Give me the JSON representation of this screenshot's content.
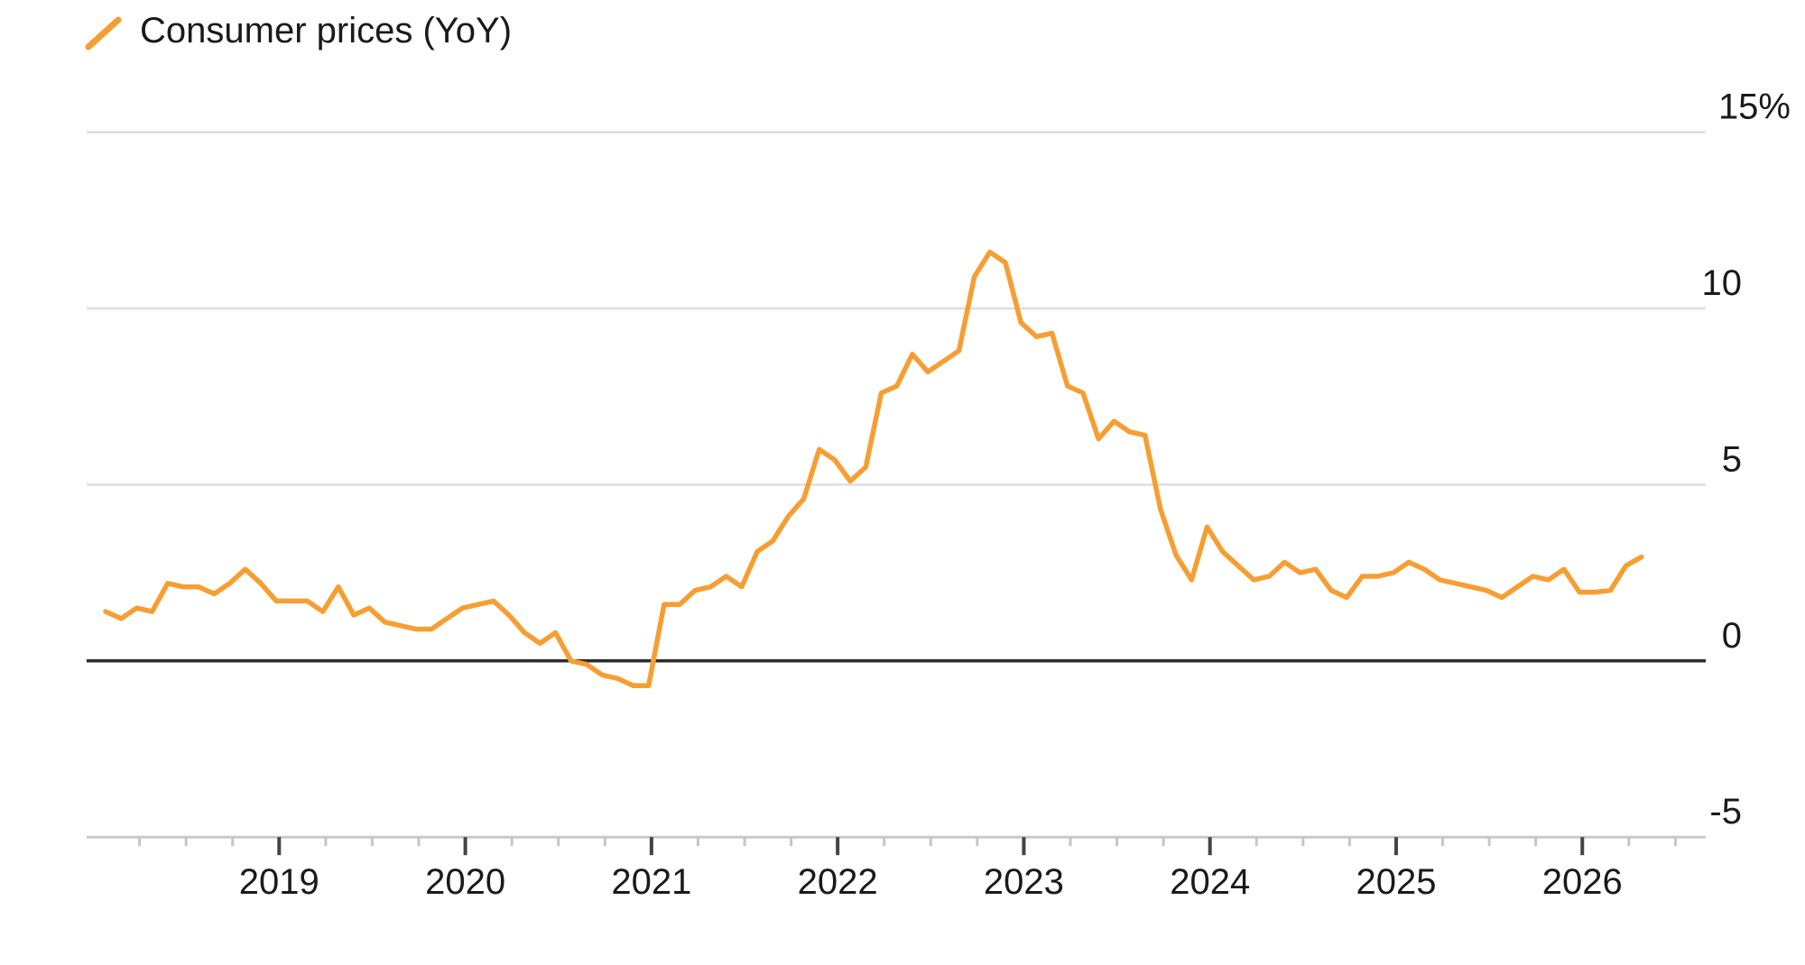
{
  "legend": {
    "swatch_icon": "orange-diagonal-line",
    "label": "Consumer prices (YoY)"
  },
  "colors": {
    "line": "#F79E32",
    "grid": "#DEDEDE",
    "zero_line": "#2B2B2B",
    "axis_line": "#C9C9C9",
    "major_tick": "#444444",
    "minor_tick": "#C6C6C6",
    "text": "#1A1A1A",
    "background": "#FFFFFF"
  },
  "chart_data": {
    "type": "line",
    "title": "",
    "unit": "%",
    "legend_position": "top-left",
    "grid": "horizontal-only",
    "x_axis": {
      "tick_years": [
        "2019",
        "2020",
        "2021",
        "2022",
        "2023",
        "2024",
        "2025",
        "2026"
      ],
      "minor_tick_interval": "quarterly",
      "range": [
        "2018-01",
        "2026-07"
      ]
    },
    "y_axis": {
      "side": "right",
      "range": [
        -5,
        15
      ],
      "ticks": [
        {
          "value": 15,
          "label": "15%"
        },
        {
          "value": 10,
          "label": "10"
        },
        {
          "value": 5,
          "label": "5"
        },
        {
          "value": 0,
          "label": "0"
        },
        {
          "value": -5,
          "label": "-5"
        }
      ]
    },
    "series": [
      {
        "name": "Consumer prices (YoY)",
        "color": "#F79E32",
        "start": "2018-01",
        "frequency": "monthly",
        "values": [
          1.4,
          1.2,
          1.5,
          1.4,
          2.2,
          2.1,
          2.1,
          1.9,
          2.2,
          2.6,
          2.2,
          1.7,
          1.7,
          1.7,
          1.4,
          2.1,
          1.3,
          1.5,
          1.1,
          1.0,
          0.9,
          0.9,
          1.2,
          1.5,
          1.6,
          1.7,
          1.3,
          0.8,
          0.5,
          0.8,
          0.0,
          -0.1,
          -0.4,
          -0.5,
          -0.7,
          -0.7,
          1.6,
          1.6,
          2.0,
          2.1,
          2.4,
          2.1,
          3.1,
          3.4,
          4.1,
          4.6,
          6.0,
          5.7,
          5.1,
          5.5,
          7.6,
          7.8,
          8.7,
          8.2,
          8.5,
          8.8,
          10.9,
          11.6,
          11.3,
          9.6,
          9.2,
          9.3,
          7.8,
          7.6,
          6.3,
          6.8,
          6.5,
          6.4,
          4.3,
          3.0,
          2.3,
          3.8,
          3.1,
          2.7,
          2.3,
          2.4,
          2.8,
          2.5,
          2.6,
          2.0,
          1.8,
          2.4,
          2.4,
          2.5,
          2.8,
          2.6,
          2.3,
          2.2,
          2.1,
          2.0,
          1.8,
          2.1,
          2.4,
          2.3,
          2.6,
          1.95,
          1.95,
          2.0,
          2.7,
          2.95
        ]
      }
    ]
  }
}
